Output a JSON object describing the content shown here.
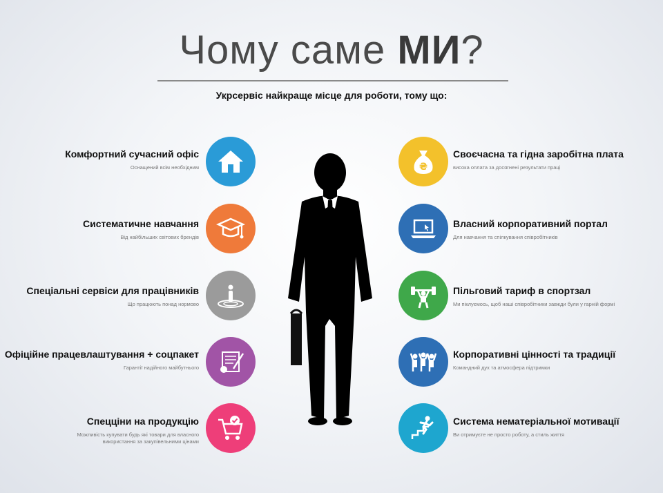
{
  "title": {
    "prefix": "Чому саме ",
    "bold": "МИ",
    "suffix": "?"
  },
  "subtitle": "Укрсервіс найкраще місце для роботи, тому що:",
  "left_items": [
    {
      "head": "Комфортний сучасний офіс",
      "desc": "Оснащений всім необхідним",
      "icon": "house-icon",
      "color": "#2a9bd7"
    },
    {
      "head": "Систематичне навчання",
      "desc": "Від найбільших світових брендів",
      "icon": "graduation-cap-icon",
      "color": "#ef7a3a"
    },
    {
      "head": "Спеціальні сервіси для працівників",
      "desc": "Що працюють понад нормово",
      "icon": "person-target-icon",
      "color": "#9b9b9b"
    },
    {
      "head": "Офіційне працевлаштування + соцпакет",
      "desc": "Гарантії надійного майбутнього",
      "icon": "certificate-icon",
      "color": "#a154a6"
    },
    {
      "head": "Спецціни на продукцію",
      "desc": "Можливість купувати будь які товари для власного використання за закупівельними цінами",
      "icon": "shopping-cart-icon",
      "color": "#ee3e79"
    }
  ],
  "right_items": [
    {
      "head": "Своєчасна та гідна заробітна плата",
      "desc": "висока оплата за досягнені результати праці",
      "icon": "money-bag-icon",
      "color": "#f3c12b"
    },
    {
      "head": "Власний корпоративний портал",
      "desc": "Для навчання та спілкування співробітників",
      "icon": "laptop-icon",
      "color": "#2e6fb5"
    },
    {
      "head": "Пільговий тариф в спортзал",
      "desc": "Ми піклуємось, щоб наші співробітники завжди були у гарній формі",
      "icon": "weightlifter-icon",
      "color": "#3fa84a"
    },
    {
      "head": "Корпоративні цінності та традиції",
      "desc": "Командний дух та атмосфера підтримки",
      "icon": "team-icon",
      "color": "#2e6fb5"
    },
    {
      "head": "Система нематеріальної мотивації",
      "desc": "Ви отримуєте не просто роботу, а стиль життя",
      "icon": "stairs-climber-icon",
      "color": "#1ea6cf"
    }
  ]
}
